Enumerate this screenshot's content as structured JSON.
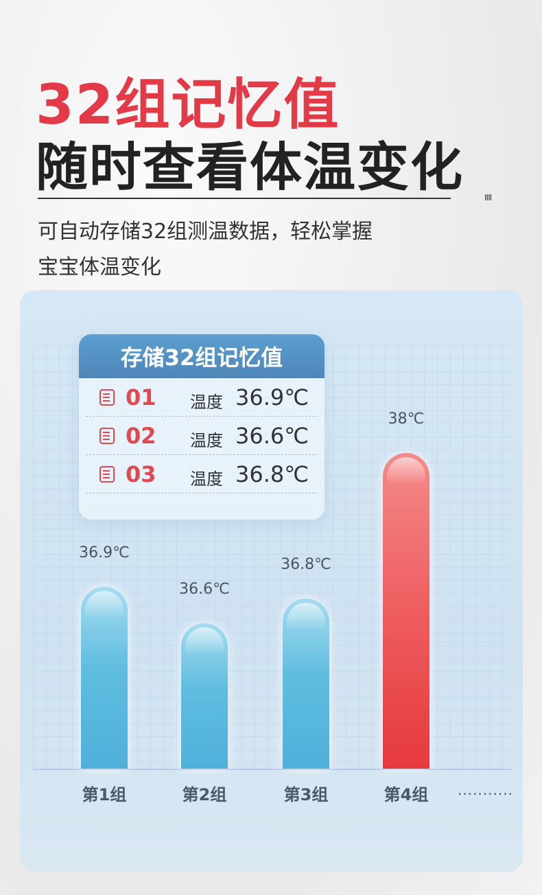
{
  "header": {
    "title": "32组记忆值",
    "subtitle": "随时查看体温变化",
    "ticks": "IIII",
    "description_line1": "可自动存储32组测温数据，轻松掌握",
    "description_line2": "宝宝体温变化"
  },
  "card": {
    "title": "存储32组记忆值",
    "rows": [
      {
        "index": "01",
        "label": "温度",
        "value": "36.9℃"
      },
      {
        "index": "02",
        "label": "温度",
        "value": "36.6℃"
      },
      {
        "index": "03",
        "label": "温度",
        "value": "36.8℃"
      }
    ]
  },
  "chart_data": {
    "type": "bar",
    "categories": [
      "第1组",
      "第2组",
      "第3组",
      "第4组"
    ],
    "values": [
      36.9,
      36.6,
      36.8,
      38
    ],
    "data_labels": [
      "36.9℃",
      "36.6℃",
      "36.8℃",
      "38℃"
    ],
    "colors": [
      "#5fbde0",
      "#5fbde0",
      "#5fbde0",
      "#ee4a4d"
    ],
    "continuation": "...........",
    "grid": true,
    "unit": "℃"
  }
}
